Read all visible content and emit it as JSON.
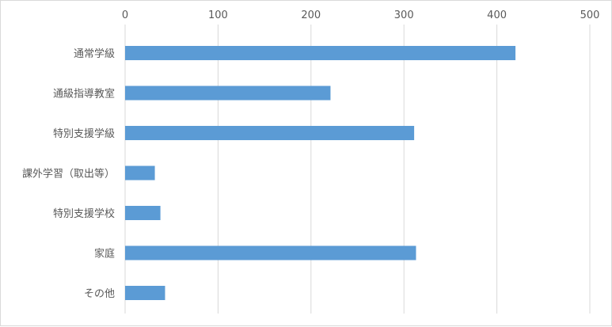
{
  "chart_data": {
    "type": "bar",
    "orientation": "horizontal",
    "categories": [
      "通常学級",
      "通級指導教室",
      "特別支援学級",
      "課外学習（取出等）",
      "特別支援学校",
      "家庭",
      "その他"
    ],
    "values": [
      420,
      221,
      311,
      32,
      38,
      313,
      43
    ],
    "xlim": [
      0,
      500
    ],
    "xticks": [
      0,
      100,
      200,
      300,
      400,
      500
    ],
    "x_axis_position": "top",
    "grid": true,
    "legend": "none",
    "bar_color": "#5b9bd5",
    "gridline_color": "#d9d9d9",
    "title": "",
    "xlabel": "",
    "ylabel": ""
  }
}
